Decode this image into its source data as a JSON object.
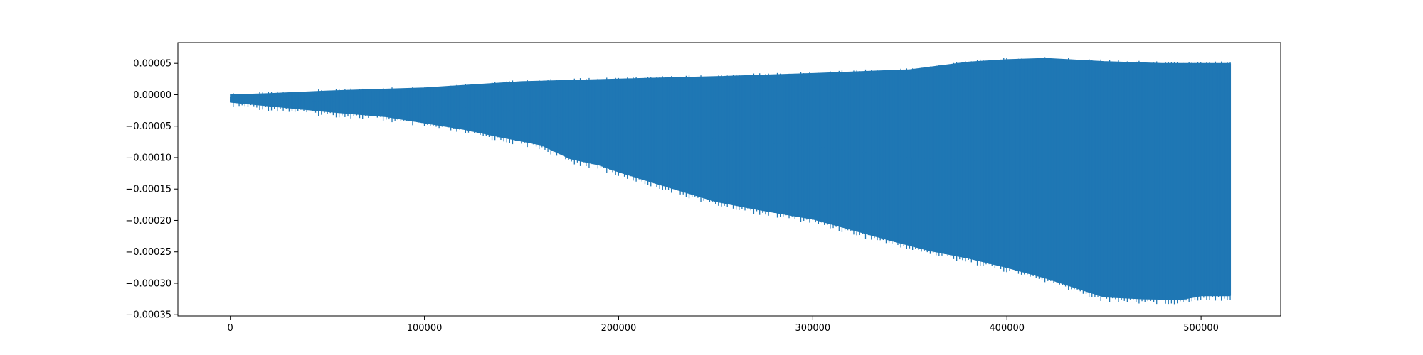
{
  "chart_data": {
    "type": "line",
    "title": "",
    "xlabel": "",
    "ylabel": "",
    "xlim": [
      -27000,
      541000
    ],
    "ylim": [
      -0.000352,
      8.3e-05
    ],
    "x_ticks": [
      0,
      100000,
      200000,
      300000,
      400000,
      500000
    ],
    "x_tick_labels": [
      "0",
      "100000",
      "200000",
      "300000",
      "400000",
      "500000"
    ],
    "y_ticks": [
      5e-05,
      0.0,
      -5e-05,
      -0.0001,
      -0.00015,
      -0.0002,
      -0.00025,
      -0.0003,
      -0.00035
    ],
    "y_tick_labels": [
      "0.00005",
      "0.00000",
      "−0.00005",
      "−0.00010",
      "−0.00015",
      "−0.00020",
      "−0.00025",
      "−0.00030",
      "−0.00035"
    ],
    "grid": false,
    "legend": "none",
    "series": [
      {
        "color": "#1f77b4",
        "x_range": [
          0,
          515000
        ],
        "upper_envelope": {
          "x": [
            0,
            20000,
            50000,
            100000,
            120000,
            150000,
            200000,
            250000,
            300000,
            350000,
            380000,
            400000,
            420000,
            450000,
            480000,
            500000,
            515000
          ],
          "y": [
            0.0,
            2e-06,
            6e-06,
            1.1e-05,
            1.5e-05,
            2.1e-05,
            2.5e-05,
            2.9e-05,
            3.4e-05,
            4e-05,
            5.2e-05,
            5.6e-05,
            5.8e-05,
            5.3e-05,
            5e-05,
            5e-05,
            5e-05
          ]
        },
        "lower_envelope": {
          "x": [
            0,
            20000,
            50000,
            80000,
            100000,
            120000,
            140000,
            160000,
            175000,
            190000,
            200000,
            220000,
            250000,
            270000,
            300000,
            320000,
            340000,
            360000,
            380000,
            400000,
            420000,
            440000,
            450000,
            470000,
            490000,
            500000,
            515000
          ],
          "y": [
            -1.2e-05,
            -1.8e-05,
            -2.7e-05,
            -3.5e-05,
            -4.5e-05,
            -5.5e-05,
            -6.8e-05,
            -8e-05,
            -0.000102,
            -0.000112,
            -0.000123,
            -0.000142,
            -0.00017,
            -0.000182,
            -0.000198,
            -0.000215,
            -0.000232,
            -0.000248,
            -0.00026,
            -0.000275,
            -0.000292,
            -0.000312,
            -0.000322,
            -0.000325,
            -0.000326,
            -0.00032,
            -0.00032
          ]
        }
      }
    ]
  }
}
